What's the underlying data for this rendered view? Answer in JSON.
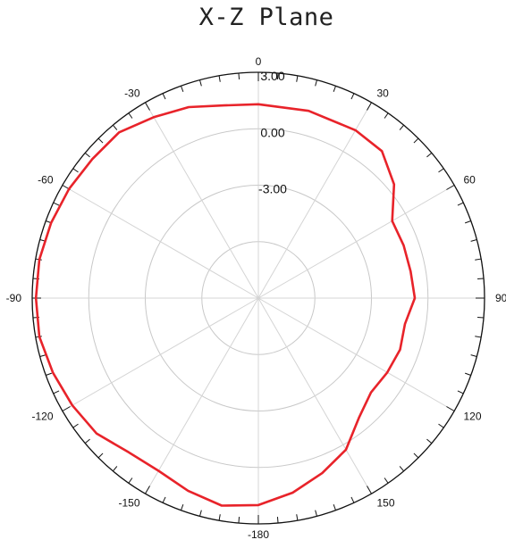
{
  "chart_data": {
    "type": "line",
    "subtype": "polar",
    "title": "X-Z Plane",
    "angle_labels": [
      "0",
      "30",
      "60",
      "90",
      "120",
      "150",
      "-180",
      "-150",
      "-120",
      "-90",
      "-60",
      "-30"
    ],
    "radial_labels": [
      "3.00",
      "0.00",
      "-3.00"
    ],
    "r_range": [
      -9,
      3
    ],
    "ring_values": [
      3,
      0,
      -3,
      -6
    ],
    "grid": true,
    "series": [
      {
        "color": "#e8232a",
        "angles": [
          0,
          15,
          30,
          40,
          50,
          60,
          70,
          80,
          90,
          100,
          110,
          120,
          130,
          140,
          150,
          160,
          170,
          180,
          190,
          200,
          210,
          220,
          230,
          240,
          250,
          260,
          270,
          280,
          290,
          300,
          310,
          320,
          330,
          340,
          350
        ],
        "values": [
          1.3,
          1.3,
          1.3,
          1.2,
          0.4,
          -0.8,
          -0.8,
          -0.8,
          -0.7,
          -1.1,
          -1.0,
          -1.1,
          -1.2,
          -0.7,
          0.3,
          0.9,
          1.5,
          2.0,
          2.2,
          1.9,
          1.6,
          1.7,
          2.2,
          2.4,
          2.6,
          2.8,
          2.8,
          2.8,
          2.7,
          2.6,
          2.5,
          2.5,
          2.1,
          1.8,
          1.4
        ]
      }
    ]
  }
}
